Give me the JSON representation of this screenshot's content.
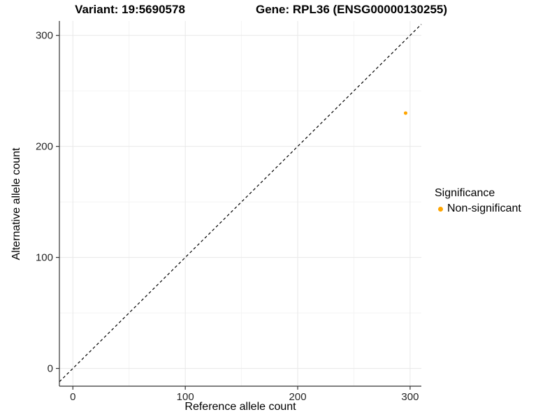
{
  "chart_data": {
    "type": "scatter",
    "titles": [
      "Variant: 19:5690578",
      "Gene: RPL36 (ENSG00000130255)"
    ],
    "xlabel": "Reference allele count",
    "ylabel": "Alternative allele count",
    "xlim": [
      -12,
      310
    ],
    "ylim": [
      -16,
      313
    ],
    "x_ticks": [
      0,
      100,
      200,
      300
    ],
    "y_ticks": [
      0,
      100,
      200,
      300
    ],
    "x_minor_ticks": [
      50,
      150,
      250
    ],
    "y_minor_ticks": [
      50,
      150,
      250
    ],
    "grid": "major+minor",
    "legend_position": "right",
    "reference_line": {
      "slope": 1,
      "intercept": 0,
      "style": "dashed",
      "color": "#000000"
    },
    "series": [
      {
        "name": "Non-significant",
        "color": "#FFA500",
        "marker": "circle",
        "point_radius": 2.5,
        "points": [
          {
            "x": 296,
            "y": 230
          }
        ]
      }
    ],
    "legend": {
      "title": "Significance",
      "items": [
        {
          "label": "Non-significant",
          "color": "#FFA500"
        }
      ]
    },
    "style_colors": {
      "axis_line": "#333333",
      "tick_mark": "#333333",
      "tick_label": "#262626",
      "grid_major": "#e8e8e8",
      "grid_minor": "#f4f4f4",
      "background": "#ffffff"
    }
  }
}
